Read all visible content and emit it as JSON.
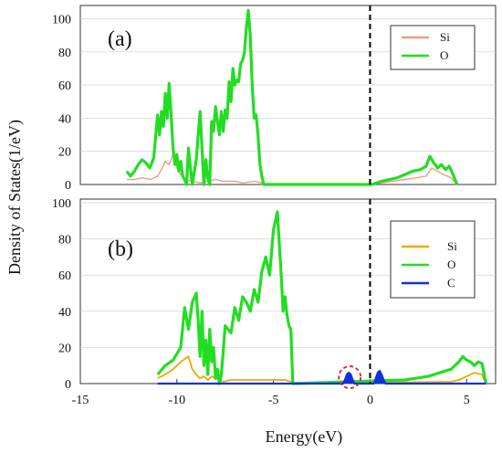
{
  "figure": {
    "ylabel": "Density of States(1/eV)",
    "xlabel": "Energy(eV)"
  },
  "colors": {
    "si": "#f0a800",
    "si_a": "#e8a080",
    "o": "#22dd22",
    "c": "#1030e0",
    "fermi": "#000000",
    "circle": "#e02020"
  },
  "chart_data": [
    {
      "type": "line",
      "panel_label": "(a)",
      "xlim": [
        -15,
        6.5
      ],
      "ylim": [
        0,
        108
      ],
      "yticks": [
        "0",
        "20",
        "40",
        "60",
        "80",
        "100"
      ],
      "fermi_level": 0,
      "legend_position": "top-right",
      "series": [
        {
          "name": "Si",
          "x": [
            -12.6,
            -12.2,
            -11.8,
            -11.4,
            -11.0,
            -10.8,
            -10.6,
            -10.4,
            -10.2,
            -10.0,
            -9.8,
            -9.6,
            -9.2,
            -8.8,
            -8.4,
            -8.0,
            -7.6,
            -7.0,
            -6.6,
            -6.0,
            -5.6,
            -5.5,
            0.1,
            0.6,
            1.2,
            1.8,
            2.4,
            2.9,
            3.2,
            3.5,
            3.8,
            4.0,
            4.2,
            4.5
          ],
          "values": [
            3,
            3,
            4,
            3,
            5,
            9,
            14,
            12,
            18,
            10,
            6,
            3,
            2,
            1,
            2,
            3,
            2,
            2,
            1,
            2,
            1,
            0,
            0,
            1,
            2,
            3,
            4,
            5,
            10,
            8,
            6,
            5,
            4,
            0
          ]
        },
        {
          "name": "O",
          "x": [
            -12.6,
            -12.4,
            -12.2,
            -12.0,
            -11.8,
            -11.6,
            -11.4,
            -11.2,
            -11.0,
            -10.9,
            -10.8,
            -10.7,
            -10.6,
            -10.5,
            -10.4,
            -10.3,
            -10.2,
            -10.1,
            -10.0,
            -9.9,
            -9.8,
            -9.7,
            -9.6,
            -9.5,
            -9.4,
            -9.3,
            -9.2,
            -9.0,
            -8.8,
            -8.6,
            -8.5,
            -8.4,
            -8.3,
            -8.2,
            -8.1,
            -8.0,
            -7.9,
            -7.8,
            -7.7,
            -7.6,
            -7.5,
            -7.4,
            -7.3,
            -7.2,
            -7.1,
            -7.0,
            -6.9,
            -6.8,
            -6.7,
            -6.6,
            -6.5,
            -6.4,
            -6.3,
            -6.2,
            -6.1,
            -6.0,
            -5.9,
            -5.8,
            -5.7,
            -5.6,
            -5.5,
            0.1,
            0.6,
            1.0,
            1.4,
            1.8,
            2.2,
            2.6,
            2.9,
            3.1,
            3.3,
            3.5,
            3.7,
            3.9,
            4.1,
            4.3,
            4.5
          ],
          "values": [
            8,
            5,
            8,
            12,
            15,
            13,
            10,
            16,
            42,
            30,
            44,
            35,
            55,
            40,
            61,
            42,
            22,
            12,
            18,
            8,
            14,
            5,
            3,
            0,
            22,
            10,
            0,
            15,
            44,
            0,
            15,
            4,
            0,
            38,
            32,
            47,
            38,
            30,
            44,
            32,
            45,
            40,
            62,
            50,
            70,
            60,
            63,
            62,
            73,
            75,
            80,
            95,
            105,
            90,
            60,
            40,
            42,
            30,
            12,
            5,
            0,
            0,
            2,
            3,
            4,
            6,
            8,
            9,
            11,
            17,
            13,
            10,
            12,
            9,
            11,
            6,
            0
          ]
        }
      ]
    },
    {
      "type": "line",
      "panel_label": "(b)",
      "xlim": [
        -15,
        6.5
      ],
      "ylim": [
        0,
        102
      ],
      "xticks": [
        "-15",
        "-10",
        "-5",
        "0",
        "5"
      ],
      "xtick_values": [
        -15,
        -10,
        -5,
        0,
        5
      ],
      "yticks": [
        "0",
        "20",
        "40",
        "60",
        "80",
        "100"
      ],
      "fermi_level": 0,
      "legend_position": "top-right",
      "series": [
        {
          "name": "Si",
          "x": [
            -11.0,
            -10.6,
            -10.2,
            -9.8,
            -9.4,
            -9.2,
            -9.0,
            -8.8,
            -8.6,
            -8.4,
            -8.2,
            -8.0,
            -7.8,
            -7.6,
            -7.2,
            -6.6,
            -6.0,
            -5.4,
            -4.8,
            -4.4,
            -4.1,
            -4.0,
            4.2,
            4.6,
            5.0,
            5.4,
            5.8,
            6.0
          ],
          "values": [
            3,
            5,
            8,
            12,
            15,
            8,
            5,
            3,
            4,
            2,
            4,
            3,
            2,
            1,
            2,
            2,
            2,
            2,
            2,
            2,
            1,
            0,
            1,
            2,
            4,
            6,
            5,
            0
          ]
        },
        {
          "name": "O",
          "x": [
            -11.0,
            -10.6,
            -10.2,
            -9.8,
            -9.6,
            -9.4,
            -9.2,
            -9.0,
            -8.9,
            -8.8,
            -8.7,
            -8.6,
            -8.5,
            -8.4,
            -8.3,
            -8.2,
            -8.1,
            -8.0,
            -7.9,
            -7.8,
            -7.7,
            -7.6,
            -7.5,
            -7.2,
            -7.0,
            -6.8,
            -6.6,
            -6.4,
            -6.2,
            -6.0,
            -5.8,
            -5.6,
            -5.4,
            -5.2,
            -5.0,
            -4.8,
            -4.6,
            -4.5,
            -4.4,
            -4.3,
            -4.2,
            -4.1,
            -4.0,
            1.8,
            2.4,
            3.0,
            3.6,
            4.2,
            4.6,
            4.8,
            5.0,
            5.2,
            5.4,
            5.6,
            5.8,
            6.0
          ],
          "values": [
            5,
            10,
            13,
            20,
            42,
            30,
            45,
            50,
            35,
            15,
            40,
            10,
            24,
            5,
            30,
            12,
            20,
            3,
            8,
            0,
            5,
            18,
            32,
            28,
            42,
            35,
            48,
            45,
            40,
            52,
            45,
            62,
            70,
            60,
            85,
            95,
            60,
            40,
            48,
            38,
            32,
            30,
            0,
            2,
            3,
            4,
            6,
            8,
            12,
            15,
            13,
            12,
            10,
            12,
            11,
            0
          ]
        },
        {
          "name": "C",
          "x": [
            -11.0,
            -1.4,
            -1.3,
            -1.2,
            -1.1,
            -1.0,
            -0.9,
            -0.8,
            0.2,
            0.3,
            0.4,
            0.5,
            0.6,
            0.7,
            0.8,
            6.0
          ],
          "values": [
            0,
            0,
            2,
            5,
            6,
            5,
            2,
            0,
            0,
            3,
            6,
            7,
            5,
            2,
            0,
            0
          ]
        }
      ]
    }
  ]
}
